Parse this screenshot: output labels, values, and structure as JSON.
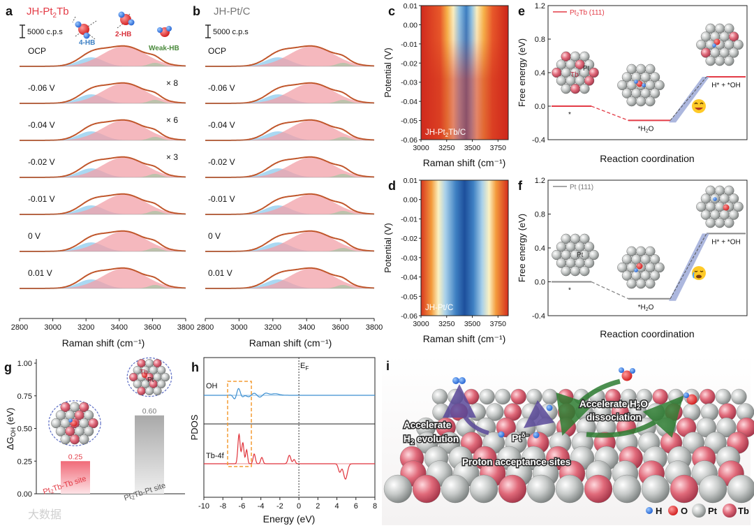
{
  "panel_labels": [
    "a",
    "b",
    "c",
    "d",
    "e",
    "f",
    "g",
    "h",
    "i"
  ],
  "scale_label": "5000 c.p.s",
  "watermark": "大数据",
  "colors": {
    "fit": "#c0562b",
    "hb4": "#8ecbee",
    "hb2": "#f2a0a8",
    "weak": "#a9c5a6",
    "pt2tb_line": "#e33b46",
    "pt_line": "#888888",
    "oh_line": "#3c8fd0",
    "tb_line": "#e0323a"
  },
  "chart_data": [
    {
      "panel": "a",
      "type": "line",
      "title": "JH-Pt2Tb",
      "xlabel": "Raman shift (cm⁻¹)",
      "xlim": [
        2800,
        3800
      ],
      "xticks": [
        2800,
        3000,
        3200,
        3400,
        3600,
        3800
      ],
      "species_labels": [
        "4-HB",
        "2-HB",
        "Weak-HB"
      ],
      "rows": [
        {
          "label": "OCP",
          "multiplier": ""
        },
        {
          "label": "-0.06 V",
          "multiplier": "× 8"
        },
        {
          "label": "-0.04 V",
          "multiplier": "× 6"
        },
        {
          "label": "-0.02 V",
          "multiplier": "× 3"
        },
        {
          "label": "-0.01 V",
          "multiplier": ""
        },
        {
          "label": "0 V",
          "multiplier": ""
        },
        {
          "label": "0.01 V",
          "multiplier": ""
        }
      ]
    },
    {
      "panel": "b",
      "type": "line",
      "title": "JH-Pt/C",
      "xlabel": "Raman shift (cm⁻¹)",
      "xlim": [
        2800,
        3800
      ],
      "xticks": [
        2800,
        3000,
        3200,
        3400,
        3600,
        3800
      ],
      "rows": [
        {
          "label": "OCP"
        },
        {
          "label": "-0.06 V"
        },
        {
          "label": "-0.04 V"
        },
        {
          "label": "-0.02 V"
        },
        {
          "label": "-0.01 V"
        },
        {
          "label": "0 V"
        },
        {
          "label": "0.01 V"
        }
      ]
    },
    {
      "panel": "c",
      "type": "heatmap",
      "label": "JH-Pt2Tb/C",
      "xlabel": "Raman shift (cm⁻¹)",
      "ylabel": "Potential (V)",
      "xlim": [
        3000,
        3850
      ],
      "xticks": [
        3000,
        3250,
        3500,
        3750
      ],
      "ylim": [
        -0.06,
        0.01
      ],
      "yticks": [
        "0.01",
        "0.00",
        "-0.01",
        "-0.02",
        "-0.03",
        "-0.04",
        "-0.05",
        "-0.06"
      ]
    },
    {
      "panel": "d",
      "type": "heatmap",
      "label": "JH-Pt/C",
      "xlabel": "Raman shift (cm⁻¹)",
      "ylabel": "Potential (V)",
      "xlim": [
        3000,
        3850
      ],
      "xticks": [
        3000,
        3250,
        3500,
        3750
      ],
      "ylim": [
        -0.06,
        0.01
      ],
      "yticks": [
        "0.01",
        "0.00",
        "-0.01",
        "-0.02",
        "-0.03",
        "-0.04",
        "-0.05",
        "-0.06"
      ]
    },
    {
      "panel": "e",
      "type": "line",
      "legend": "Pt2Tb (111)",
      "xlabel": "Reaction coordination",
      "ylabel": "Free energy (eV)",
      "ylim": [
        -0.4,
        1.2
      ],
      "yticks": [
        "1.2",
        "0.8",
        "0.4",
        "0.0",
        "-0.4"
      ],
      "states": [
        "*",
        "*H2O",
        "H* + *OH"
      ],
      "energies": [
        0.0,
        -0.17,
        0.35
      ],
      "atom_labels": [
        "Tb",
        "Pt"
      ]
    },
    {
      "panel": "f",
      "type": "line",
      "legend": "Pt (111)",
      "xlabel": "Reaction coordination",
      "ylabel": "Free energy (eV)",
      "ylim": [
        -0.4,
        1.2
      ],
      "yticks": [
        "1.2",
        "0.8",
        "0.4",
        "0.0",
        "-0.4"
      ],
      "states": [
        "*",
        "*H2O",
        "H* + *OH"
      ],
      "energies": [
        0.0,
        -0.2,
        0.57
      ],
      "atom_labels": [
        "Pt"
      ]
    },
    {
      "panel": "g",
      "type": "bar",
      "ylabel": "ΔGOH (eV)",
      "ylim": [
        0,
        1.0
      ],
      "yticks": [
        "0.00",
        "0.25",
        "0.50",
        "0.75",
        "1.00"
      ],
      "categories": [
        "Pt2Tb-Tb site",
        "Pt2Tb-Pt site"
      ],
      "values": [
        0.25,
        0.6
      ],
      "value_labels": [
        "0.25",
        "0.60"
      ],
      "atom_labels": [
        "Tb",
        "Pt"
      ]
    },
    {
      "panel": "h",
      "type": "line",
      "xlabel": "Energy (eV)",
      "ylabel": "PDOS",
      "xlim": [
        -10,
        8
      ],
      "xticks": [
        -10,
        -8,
        -6,
        -4,
        -2,
        0,
        2,
        4,
        6,
        8
      ],
      "fermi_label": "EF",
      "series": [
        {
          "name": "OH"
        },
        {
          "name": "Tb-4f"
        }
      ]
    }
  ],
  "panel_i": {
    "texts": [
      "Accelerate H2O",
      "dissociation",
      "Accelerate",
      "H2 evolution",
      "Ptδ−",
      "Proton acceptance sites"
    ],
    "legend": [
      "H",
      "O",
      "Pt",
      "Tb"
    ]
  }
}
